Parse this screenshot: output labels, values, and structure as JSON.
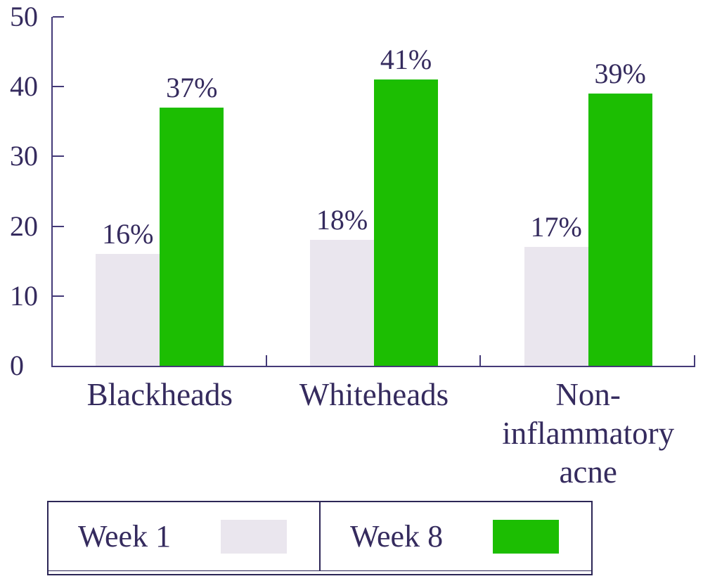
{
  "chart_data": {
    "type": "bar",
    "categories": [
      "Blackheads",
      "Whiteheads",
      "Non-inflammatory acne"
    ],
    "series": [
      {
        "name": "Week 1",
        "values": [
          16,
          18,
          17
        ],
        "labels": [
          "16%",
          "18%",
          "17%"
        ],
        "color": "#eae6ee"
      },
      {
        "name": "Week 8",
        "values": [
          37,
          41,
          39
        ],
        "labels": [
          "37%",
          "41%",
          "39%"
        ],
        "color": "#1cbe02"
      }
    ],
    "ylim": [
      0,
      50
    ],
    "yticks": [
      0,
      10,
      20,
      30,
      40,
      50
    ],
    "value_suffix": "%",
    "grid": "off",
    "legend_position": "bottom",
    "colors": {
      "text": "#352b5e",
      "axis": "#443a78",
      "legend_border": "#2c2656"
    }
  }
}
